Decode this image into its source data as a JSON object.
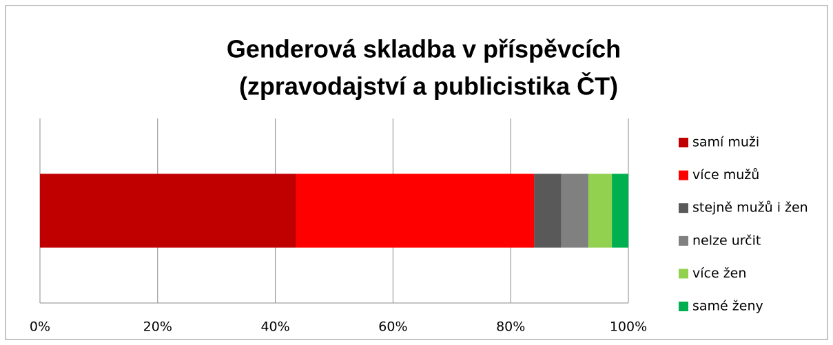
{
  "chart_data": {
    "type": "stacked_bar_horizontal",
    "title": [
      "Genderová skladba v příspěvcích",
      "(zpravodajství a publicistika ČT)"
    ],
    "categories": [
      null
    ],
    "series": [
      {
        "name": "samí muži",
        "color": "#c00000",
        "values": [
          43.5
        ]
      },
      {
        "name": "více mužů",
        "color": "#ff0000",
        "values": [
          40.5
        ]
      },
      {
        "name": "stejně mužů i žen",
        "color": "#595959",
        "values": [
          4.6
        ]
      },
      {
        "name": "nelze určit",
        "color": "#808080",
        "values": [
          4.6
        ]
      },
      {
        "name": "více žen",
        "color": "#92d050",
        "values": [
          4.0
        ]
      },
      {
        "name": "samé ženy",
        "color": "#00b050",
        "values": [
          2.8
        ]
      }
    ],
    "xlim": [
      0,
      100
    ],
    "xticks": [
      {
        "value": 0,
        "label": "0%"
      },
      {
        "value": 20,
        "label": "20%"
      },
      {
        "value": 40,
        "label": "40%"
      },
      {
        "value": 60,
        "label": "60%"
      },
      {
        "value": 80,
        "label": "80%"
      },
      {
        "value": 100,
        "label": "100%"
      }
    ],
    "grid": true,
    "legend": "right"
  }
}
